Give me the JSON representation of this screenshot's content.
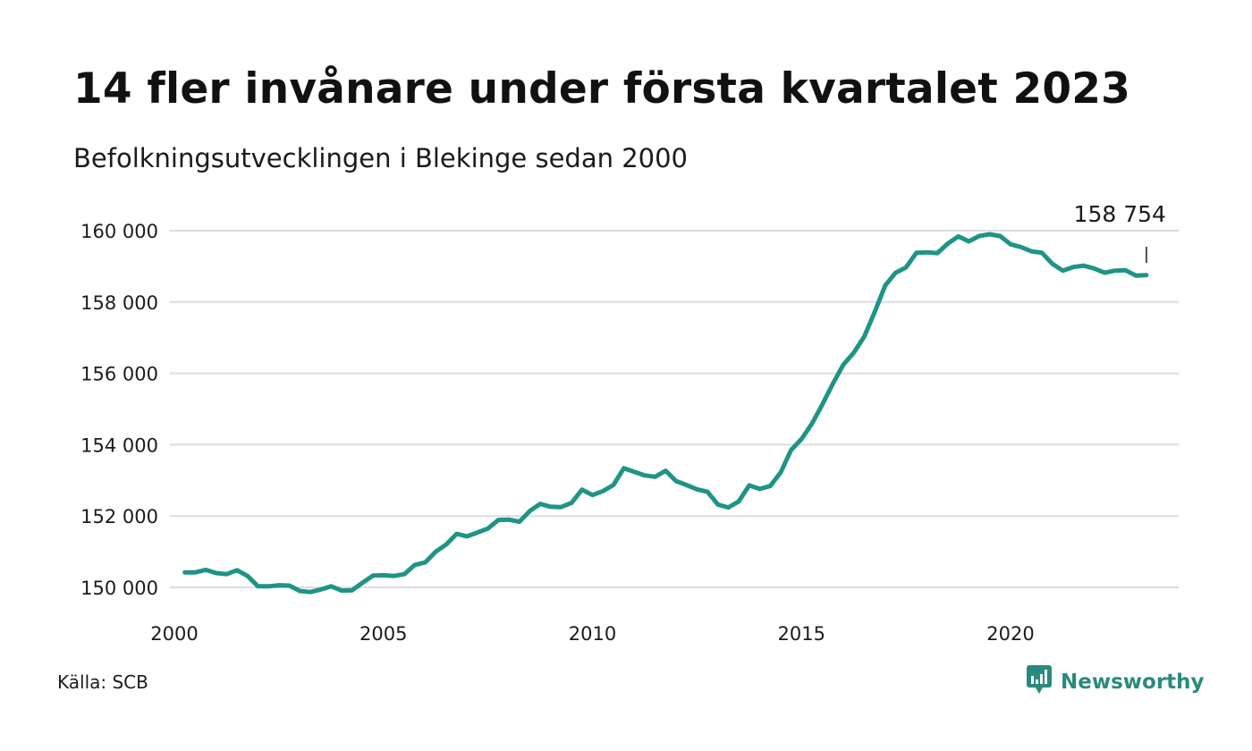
{
  "title": "14 fler invånare under första kvartalet 2023",
  "subtitle": "Befolkningsutvecklingen i Blekinge sedan 2000",
  "source": "Källa: SCB",
  "brand": {
    "name": "Newsworthy",
    "icon": "newsworthy-logo-icon",
    "color": "#2a8a7d"
  },
  "colors": {
    "line": "#1f9486",
    "grid": "#dcdce3",
    "text": "#1b1b1b"
  },
  "chart_data": {
    "type": "line",
    "title": "14 fler invånare under första kvartalet 2023",
    "subtitle": "Befolkningsutvecklingen i Blekinge sedan 2000",
    "xlabel": "",
    "ylabel": "",
    "xlim": [
      2000,
      2024
    ],
    "ylim": [
      149500,
      160500
    ],
    "x_ticks": [
      {
        "value": 2000,
        "label": "2000"
      },
      {
        "value": 2005,
        "label": "2005"
      },
      {
        "value": 2010,
        "label": "2010"
      },
      {
        "value": 2015,
        "label": "2015"
      },
      {
        "value": 2020,
        "label": "2020"
      }
    ],
    "y_ticks": [
      {
        "value": 150000,
        "label": "150 000"
      },
      {
        "value": 152000,
        "label": "152 000"
      },
      {
        "value": 154000,
        "label": "154 000"
      },
      {
        "value": 156000,
        "label": "156 000"
      },
      {
        "value": 158000,
        "label": "158 000"
      },
      {
        "value": 160000,
        "label": "160 000"
      }
    ],
    "grid": true,
    "annotation": {
      "label": "158 754",
      "x": 2023.25,
      "y": 158754
    },
    "series": [
      {
        "values": [
          [
            2000.25,
            150420
          ],
          [
            2000.5,
            150420
          ],
          [
            2000.75,
            150490
          ],
          [
            2001.0,
            150400
          ],
          [
            2001.25,
            150370
          ],
          [
            2001.5,
            150480
          ],
          [
            2001.75,
            150320
          ],
          [
            2002.0,
            150030
          ],
          [
            2002.25,
            150030
          ],
          [
            2002.5,
            150060
          ],
          [
            2002.75,
            150050
          ],
          [
            2003.0,
            149900
          ],
          [
            2003.25,
            149870
          ],
          [
            2003.5,
            149940
          ],
          [
            2003.75,
            150030
          ],
          [
            2004.0,
            149910
          ],
          [
            2004.25,
            149920
          ],
          [
            2004.5,
            150130
          ],
          [
            2004.75,
            150330
          ],
          [
            2005.0,
            150340
          ],
          [
            2005.25,
            150320
          ],
          [
            2005.5,
            150370
          ],
          [
            2005.75,
            150630
          ],
          [
            2006.0,
            150700
          ],
          [
            2006.25,
            151000
          ],
          [
            2006.5,
            151200
          ],
          [
            2006.75,
            151500
          ],
          [
            2007.0,
            151430
          ],
          [
            2007.25,
            151540
          ],
          [
            2007.5,
            151650
          ],
          [
            2007.75,
            151890
          ],
          [
            2008.0,
            151900
          ],
          [
            2008.25,
            151840
          ],
          [
            2008.5,
            152140
          ],
          [
            2008.75,
            152340
          ],
          [
            2009.0,
            152260
          ],
          [
            2009.25,
            152250
          ],
          [
            2009.5,
            152370
          ],
          [
            2009.75,
            152740
          ],
          [
            2010.0,
            152590
          ],
          [
            2010.25,
            152700
          ],
          [
            2010.5,
            152870
          ],
          [
            2010.75,
            153340
          ],
          [
            2011.0,
            153240
          ],
          [
            2011.25,
            153140
          ],
          [
            2011.5,
            153100
          ],
          [
            2011.75,
            153270
          ],
          [
            2012.0,
            152980
          ],
          [
            2012.25,
            152870
          ],
          [
            2012.5,
            152750
          ],
          [
            2012.75,
            152680
          ],
          [
            2013.0,
            152320
          ],
          [
            2013.25,
            152240
          ],
          [
            2013.5,
            152410
          ],
          [
            2013.75,
            152860
          ],
          [
            2014.0,
            152760
          ],
          [
            2014.25,
            152840
          ],
          [
            2014.5,
            153220
          ],
          [
            2014.75,
            153850
          ],
          [
            2015.0,
            154160
          ],
          [
            2015.25,
            154590
          ],
          [
            2015.5,
            155130
          ],
          [
            2015.75,
            155710
          ],
          [
            2016.0,
            156240
          ],
          [
            2016.25,
            156580
          ],
          [
            2016.5,
            157030
          ],
          [
            2016.75,
            157720
          ],
          [
            2017.0,
            158460
          ],
          [
            2017.25,
            158820
          ],
          [
            2017.5,
            158970
          ],
          [
            2017.75,
            159380
          ],
          [
            2018.0,
            159390
          ],
          [
            2018.25,
            159370
          ],
          [
            2018.5,
            159640
          ],
          [
            2018.75,
            159840
          ],
          [
            2019.0,
            159700
          ],
          [
            2019.25,
            159850
          ],
          [
            2019.5,
            159900
          ],
          [
            2019.75,
            159850
          ],
          [
            2020.0,
            159620
          ],
          [
            2020.25,
            159540
          ],
          [
            2020.5,
            159420
          ],
          [
            2020.75,
            159380
          ],
          [
            2021.0,
            159070
          ],
          [
            2021.25,
            158880
          ],
          [
            2021.5,
            158980
          ],
          [
            2021.75,
            159020
          ],
          [
            2022.0,
            158940
          ],
          [
            2022.25,
            158820
          ],
          [
            2022.5,
            158880
          ],
          [
            2022.75,
            158890
          ],
          [
            2023.0,
            158740
          ],
          [
            2023.25,
            158754
          ]
        ]
      }
    ]
  }
}
